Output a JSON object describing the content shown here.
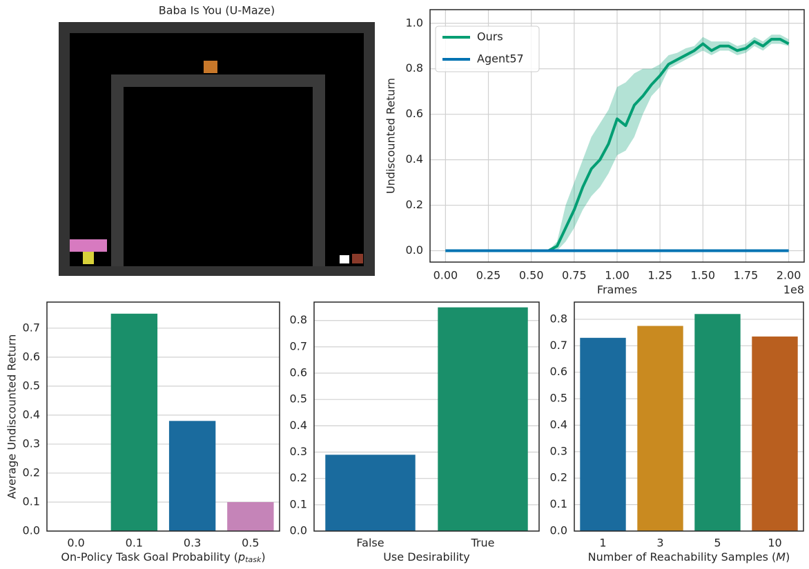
{
  "chart_data": [
    {
      "type": "image",
      "title": "Baba Is You (U-Maze)"
    },
    {
      "type": "line",
      "xlabel": "Frames",
      "ylabel": "Undiscounted Return",
      "x_offset_label": "1e8",
      "x": [
        0,
        0.05,
        0.1,
        0.15,
        0.2,
        0.25,
        0.3,
        0.35,
        0.4,
        0.45,
        0.5,
        0.55,
        0.6,
        0.65,
        0.7,
        0.75,
        0.8,
        0.85,
        0.9,
        0.95,
        1.0,
        1.05,
        1.1,
        1.15,
        1.2,
        1.25,
        1.3,
        1.35,
        1.4,
        1.45,
        1.5,
        1.55,
        1.6,
        1.65,
        1.7,
        1.75,
        1.8,
        1.85,
        1.9,
        1.95,
        2.0
      ],
      "series": [
        {
          "name": "Ours",
          "color": "#029e73",
          "values": [
            0,
            0,
            0,
            0,
            0,
            0,
            0,
            0,
            0,
            0,
            0,
            0,
            0,
            0.02,
            0.1,
            0.18,
            0.28,
            0.36,
            0.4,
            0.47,
            0.58,
            0.55,
            0.64,
            0.68,
            0.73,
            0.77,
            0.82,
            0.84,
            0.86,
            0.88,
            0.91,
            0.88,
            0.9,
            0.9,
            0.88,
            0.89,
            0.92,
            0.9,
            0.93,
            0.93,
            0.91
          ],
          "lower": [
            0,
            0,
            0,
            0,
            0,
            0,
            0,
            0,
            0,
            0,
            0,
            0,
            0,
            0,
            0.04,
            0.1,
            0.18,
            0.24,
            0.28,
            0.34,
            0.42,
            0.44,
            0.5,
            0.6,
            0.68,
            0.72,
            0.8,
            0.82,
            0.84,
            0.86,
            0.88,
            0.86,
            0.88,
            0.88,
            0.86,
            0.87,
            0.9,
            0.88,
            0.91,
            0.91,
            0.9
          ],
          "upper": [
            0,
            0,
            0,
            0,
            0,
            0,
            0,
            0,
            0,
            0,
            0,
            0,
            0,
            0.04,
            0.2,
            0.3,
            0.4,
            0.5,
            0.56,
            0.62,
            0.72,
            0.74,
            0.78,
            0.8,
            0.8,
            0.82,
            0.86,
            0.87,
            0.89,
            0.9,
            0.94,
            0.92,
            0.92,
            0.92,
            0.9,
            0.91,
            0.94,
            0.92,
            0.95,
            0.95,
            0.93
          ]
        },
        {
          "name": "Agent57",
          "color": "#0173b2",
          "values": [
            0,
            0,
            0,
            0,
            0,
            0,
            0,
            0,
            0,
            0,
            0,
            0,
            0,
            0,
            0,
            0,
            0,
            0,
            0,
            0,
            0,
            0,
            0,
            0,
            0,
            0,
            0,
            0,
            0,
            0,
            0,
            0,
            0,
            0,
            0,
            0,
            0,
            0,
            0,
            0,
            0
          ]
        }
      ],
      "xlim": [
        -0.09,
        2.09
      ],
      "ylim": [
        -0.05,
        1.06
      ],
      "xticks": [
        {
          "value": 0,
          "label": "0.00"
        },
        0.25,
        {
          "value": 0.5,
          "label": "0.50"
        },
        0.75,
        {
          "value": 1,
          "label": "1.00"
        },
        1.25,
        {
          "value": 1.5,
          "label": "1.50"
        },
        1.75,
        {
          "value": 2,
          "label": "2.00"
        }
      ],
      "yticks": [
        {
          "value": 0,
          "label": "0.0"
        },
        0.2,
        0.4,
        0.6,
        0.8,
        {
          "value": 1,
          "label": "1.0"
        }
      ],
      "grid": true,
      "legend": "upper left"
    },
    {
      "type": "bar",
      "ylabel": "Average Undiscounted Return",
      "xlabel_prefix": "On-Policy Task Goal Probability (",
      "xlabel_symbol": "p",
      "xlabel_subscript": "task",
      "xlabel_suffix": ")",
      "categories": [
        "0.0",
        "0.1",
        "0.3",
        "0.5"
      ],
      "values": [
        0,
        0.75,
        0.38,
        0.1
      ],
      "colors": [
        "#1a6b9e",
        "#1a8f6a",
        "#1a6b9e",
        "#c584b8"
      ],
      "ylim": [
        0,
        0.79
      ],
      "yticks": [
        {
          "value": 0,
          "label": "0.0"
        },
        0.1,
        0.2,
        0.3,
        0.4,
        0.5,
        0.6,
        0.7
      ],
      "grid": true
    },
    {
      "type": "bar",
      "xlabel_prefix": "Use Desirability",
      "categories": [
        "False",
        "True"
      ],
      "values": [
        0.29,
        0.85
      ],
      "colors": [
        "#1a6b9e",
        "#1a8f6a"
      ],
      "ylim": [
        0,
        0.87
      ],
      "yticks": [
        {
          "value": 0,
          "label": "0.0"
        },
        0.1,
        0.2,
        0.3,
        0.4,
        0.5,
        0.6,
        0.7,
        0.8
      ],
      "grid": true
    },
    {
      "type": "bar",
      "xlabel_prefix": "Number of Reachability Samples (",
      "xlabel_symbol": "M",
      "xlabel_suffix": ")",
      "categories": [
        "1",
        "3",
        "5",
        "10"
      ],
      "values": [
        0.73,
        0.775,
        0.82,
        0.735
      ],
      "colors": [
        "#1a6b9e",
        "#c98a20",
        "#1a8f6a",
        "#b95f1f"
      ],
      "ylim": [
        0,
        0.865
      ],
      "yticks": [
        {
          "value": 0,
          "label": "0.0"
        },
        0.1,
        0.2,
        0.3,
        0.4,
        0.5,
        0.6,
        0.7,
        0.8
      ],
      "grid": true
    }
  ]
}
